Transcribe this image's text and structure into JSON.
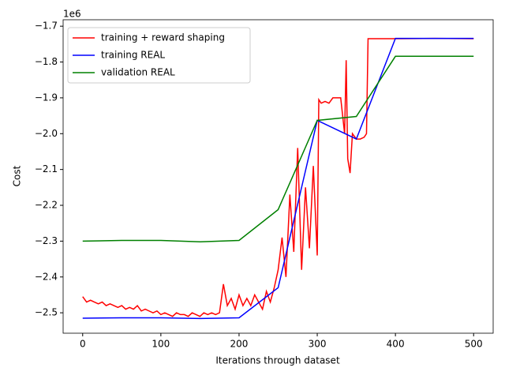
{
  "chart_data": {
    "type": "line",
    "x_label": "Iterations through dataset",
    "y_label": "Cost",
    "y_offset_label": "1e6",
    "xlim": [
      -25,
      525
    ],
    "ylim": [
      -2.557,
      -1.682
    ],
    "xticks": [
      0,
      100,
      200,
      300,
      400,
      500
    ],
    "yticks": [
      {
        "value": -2.5,
        "label": "−2.5"
      },
      {
        "value": -2.4,
        "label": "−2.4"
      },
      {
        "value": -2.3,
        "label": "−2.3"
      },
      {
        "value": -2.2,
        "label": "−2.2"
      },
      {
        "value": -2.1,
        "label": "−2.1"
      },
      {
        "value": -2.0,
        "label": "−2.0"
      },
      {
        "value": -1.9,
        "label": "−1.9"
      },
      {
        "value": -1.8,
        "label": "−1.8"
      },
      {
        "value": -1.7,
        "label": "−1.7"
      }
    ],
    "legend": "upper left",
    "series": [
      {
        "name": "training + reward shaping",
        "color": "#ff0000",
        "x": [
          0,
          5,
          10,
          15,
          20,
          25,
          30,
          35,
          40,
          45,
          50,
          55,
          60,
          65,
          70,
          75,
          80,
          85,
          90,
          95,
          100,
          105,
          110,
          115,
          120,
          125,
          130,
          135,
          140,
          145,
          150,
          155,
          160,
          165,
          170,
          175,
          180,
          185,
          190,
          195,
          200,
          205,
          210,
          215,
          220,
          225,
          230,
          235,
          240,
          245,
          250,
          255,
          260,
          265,
          270,
          275,
          280,
          285,
          290,
          295,
          300,
          302,
          305,
          310,
          315,
          320,
          325,
          330,
          335,
          337,
          339,
          342,
          345,
          350,
          355,
          360,
          363,
          365,
          370,
          400,
          450,
          500
        ],
        "values": [
          -2.455,
          -2.47,
          -2.465,
          -2.47,
          -2.475,
          -2.47,
          -2.48,
          -2.475,
          -2.48,
          -2.485,
          -2.48,
          -2.49,
          -2.485,
          -2.49,
          -2.48,
          -2.495,
          -2.49,
          -2.495,
          -2.5,
          -2.495,
          -2.505,
          -2.5,
          -2.505,
          -2.51,
          -2.5,
          -2.505,
          -2.505,
          -2.51,
          -2.5,
          -2.505,
          -2.51,
          -2.5,
          -2.505,
          -2.5,
          -2.505,
          -2.5,
          -2.42,
          -2.48,
          -2.46,
          -2.49,
          -2.45,
          -2.48,
          -2.46,
          -2.48,
          -2.45,
          -2.47,
          -2.49,
          -2.44,
          -2.47,
          -2.43,
          -2.38,
          -2.29,
          -2.4,
          -2.17,
          -2.33,
          -2.04,
          -2.38,
          -2.15,
          -2.32,
          -2.09,
          -2.34,
          -1.905,
          -1.915,
          -1.91,
          -1.915,
          -1.9,
          -1.9,
          -1.9,
          -2.0,
          -1.795,
          -2.07,
          -2.11,
          -2.0,
          -2.015,
          -2.015,
          -2.01,
          -2.0,
          -1.735,
          -1.735,
          -1.735,
          -1.734,
          -1.735
        ]
      },
      {
        "name": "training REAL",
        "color": "#0000ff",
        "x": [
          0,
          50,
          100,
          150,
          200,
          250,
          300,
          350,
          400,
          450,
          500
        ],
        "values": [
          -2.515,
          -2.514,
          -2.514,
          -2.516,
          -2.514,
          -2.43,
          -1.963,
          -2.015,
          -1.734,
          -1.734,
          -1.734
        ]
      },
      {
        "name": "validation REAL",
        "color": "#008000",
        "x": [
          0,
          50,
          100,
          150,
          200,
          250,
          300,
          350,
          400,
          450,
          500
        ],
        "values": [
          -2.3,
          -2.298,
          -2.298,
          -2.302,
          -2.298,
          -2.212,
          -1.963,
          -1.952,
          -1.784,
          -1.784,
          -1.784
        ]
      }
    ]
  }
}
